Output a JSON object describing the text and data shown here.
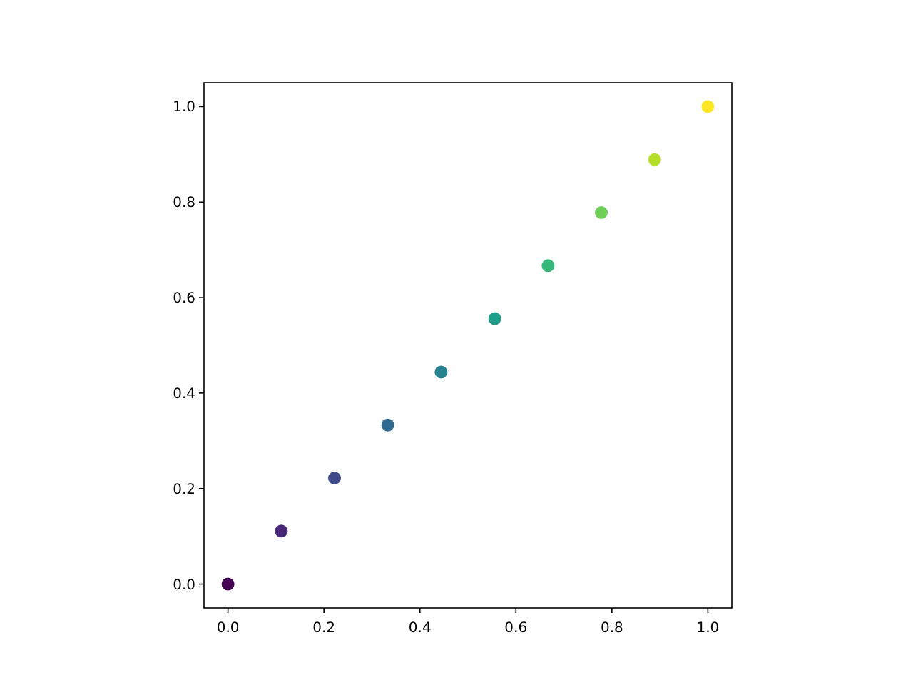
{
  "chart_data": {
    "type": "scatter",
    "x": [
      0,
      0.111,
      0.222,
      0.333,
      0.444,
      0.556,
      0.667,
      0.778,
      0.889,
      1
    ],
    "values": [
      0,
      0.111,
      0.222,
      0.333,
      0.444,
      0.556,
      0.667,
      0.778,
      0.889,
      1
    ],
    "colors": [
      "#440154",
      "#482878",
      "#3e4989",
      "#31688e",
      "#26828e",
      "#1f9e89",
      "#35b779",
      "#6ece58",
      "#b5de2b",
      "#fde725"
    ],
    "marker": "circle",
    "xlim": [
      -0.05,
      1.05
    ],
    "ylim": [
      -0.05,
      1.05
    ],
    "xticks": [
      {
        "value": 0,
        "label": "0.0"
      },
      {
        "value": 0.2,
        "label": "0.2"
      },
      {
        "value": 0.4,
        "label": "0.4"
      },
      {
        "value": 0.6,
        "label": "0.6"
      },
      {
        "value": 0.8,
        "label": "0.8"
      },
      {
        "value": 1,
        "label": "1.0"
      }
    ],
    "yticks": [
      {
        "value": 0,
        "label": "0.0"
      },
      {
        "value": 0.2,
        "label": "0.2"
      },
      {
        "value": 0.4,
        "label": "0.4"
      },
      {
        "value": 0.6,
        "label": "0.6"
      },
      {
        "value": 0.8,
        "label": "0.8"
      },
      {
        "value": 1,
        "label": "1.0"
      }
    ]
  }
}
